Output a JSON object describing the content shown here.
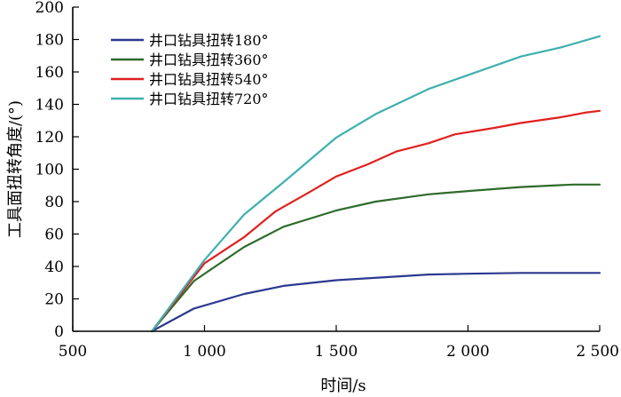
{
  "chart_data": {
    "type": "line",
    "title": "",
    "xlabel": "时间/s",
    "ylabel": "工具面扭转角度/(°)",
    "xlim": [
      500,
      2500
    ],
    "ylim": [
      0,
      200
    ],
    "x_ticks": [
      500,
      1000,
      1500,
      2000,
      2500
    ],
    "x_tick_labels": [
      "500",
      "1 000",
      "1 500",
      "2 000",
      "2 500"
    ],
    "y_ticks": [
      0,
      20,
      40,
      60,
      80,
      100,
      120,
      140,
      160,
      180,
      200
    ],
    "y_tick_labels": [
      "0",
      "20",
      "40",
      "60",
      "80",
      "100",
      "120",
      "140",
      "160",
      "180",
      "200"
    ],
    "grid": false,
    "legend_position": "top-left",
    "series": [
      {
        "name": "井口钻具扭转180°",
        "color": "#2b3990",
        "points": [
          [
            800,
            0
          ],
          [
            960,
            14
          ],
          [
            1150,
            23
          ],
          [
            1300,
            28
          ],
          [
            1500,
            31.5
          ],
          [
            1700,
            33.5
          ],
          [
            1850,
            35
          ],
          [
            2000,
            35.5
          ],
          [
            2200,
            36
          ],
          [
            2500,
            36
          ]
        ]
      },
      {
        "name": "井口钻具扭转360°",
        "color": "#2e6b2a",
        "points": [
          [
            800,
            0
          ],
          [
            960,
            31
          ],
          [
            1150,
            52
          ],
          [
            1300,
            64.5
          ],
          [
            1500,
            74.5
          ],
          [
            1650,
            80
          ],
          [
            1850,
            84.5
          ],
          [
            2000,
            86.5
          ],
          [
            2200,
            89
          ],
          [
            2400,
            90.5
          ],
          [
            2500,
            90.5
          ]
        ]
      },
      {
        "name": "井口钻具扭转540°",
        "color": "#e0201e",
        "points": [
          [
            800,
            0
          ],
          [
            1000,
            42
          ],
          [
            1150,
            58
          ],
          [
            1270,
            74
          ],
          [
            1400,
            86
          ],
          [
            1500,
            95.5
          ],
          [
            1620,
            103
          ],
          [
            1730,
            111
          ],
          [
            1850,
            116
          ],
          [
            1950,
            121.5
          ],
          [
            2100,
            125.5
          ],
          [
            2200,
            128.5
          ],
          [
            2350,
            132
          ],
          [
            2450,
            135
          ],
          [
            2500,
            136
          ]
        ]
      },
      {
        "name": "井口钻具扭转720°",
        "color": "#3fb0ae",
        "points": [
          [
            800,
            0
          ],
          [
            1000,
            44
          ],
          [
            1150,
            72
          ],
          [
            1300,
            92
          ],
          [
            1500,
            119.5
          ],
          [
            1650,
            134
          ],
          [
            1850,
            149.5
          ],
          [
            2000,
            158
          ],
          [
            2200,
            169.5
          ],
          [
            2350,
            175
          ],
          [
            2500,
            182
          ]
        ]
      }
    ]
  }
}
